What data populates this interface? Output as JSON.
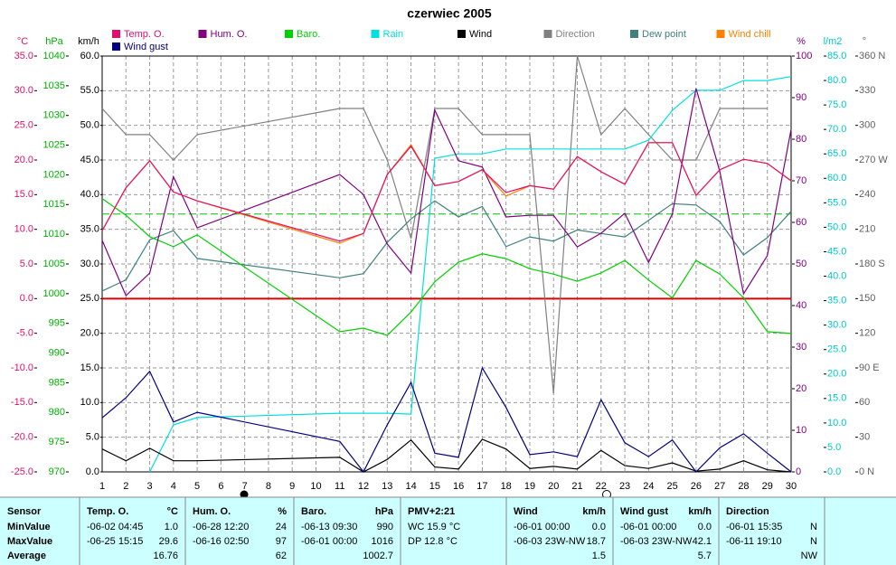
{
  "chart_data": {
    "type": "line",
    "title": "czerwiec 2005",
    "xlim": [
      1,
      30
    ],
    "xticks": [
      1,
      2,
      3,
      4,
      5,
      6,
      7,
      8,
      9,
      10,
      11,
      12,
      13,
      14,
      15,
      16,
      17,
      18,
      19,
      20,
      21,
      22,
      23,
      24,
      25,
      26,
      27,
      28,
      29,
      30
    ],
    "x": [
      1,
      2,
      3,
      4,
      5,
      11,
      12,
      13,
      14,
      15,
      16,
      17,
      18,
      19,
      20,
      21,
      22,
      23,
      24,
      25,
      26,
      27,
      28,
      29,
      30
    ],
    "grid": true,
    "axes": [
      {
        "unit": "°C",
        "side": "left",
        "color": "#e0106a",
        "lim": [
          -25,
          35
        ],
        "ticks": [
          {
            "value": -25,
            "label": "-25.0"
          },
          {
            "value": -20,
            "label": "-20.0"
          },
          {
            "value": -15,
            "label": "-15.0"
          },
          {
            "value": -10,
            "label": "-10.0"
          },
          {
            "value": -5,
            "label": "-5.0"
          },
          {
            "value": 0,
            "label": "0.0"
          },
          {
            "value": 5,
            "label": "5.0"
          },
          {
            "value": 10,
            "label": "10.0"
          },
          {
            "value": 15,
            "label": "15.0"
          },
          {
            "value": 20,
            "label": "20.0"
          },
          {
            "value": 25,
            "label": "25.0"
          },
          {
            "value": 30,
            "label": "30.0"
          },
          {
            "value": 35,
            "label": "35.0"
          }
        ]
      },
      {
        "unit": "hPa",
        "side": "left",
        "color": "#00b000",
        "lim": [
          970,
          1040
        ],
        "ticks": [
          970,
          975,
          980,
          985,
          990,
          995,
          1000,
          1005,
          1010,
          1015,
          1020,
          1025,
          1030,
          1035,
          1040
        ]
      },
      {
        "unit": "km/h",
        "side": "left",
        "color": "#000000",
        "lim": [
          0,
          60
        ],
        "ticks": [
          {
            "value": 0,
            "label": "0.0"
          },
          {
            "value": 5,
            "label": "5.0"
          },
          {
            "value": 10,
            "label": "10.0"
          },
          {
            "value": 15,
            "label": "15.0"
          },
          {
            "value": 20,
            "label": "20.0"
          },
          {
            "value": 25,
            "label": "25.0"
          },
          {
            "value": 30,
            "label": "30.0"
          },
          {
            "value": 35,
            "label": "35.0"
          },
          {
            "value": 40,
            "label": "40.0"
          },
          {
            "value": 45,
            "label": "45.0"
          },
          {
            "value": 50,
            "label": "50.0"
          },
          {
            "value": 55,
            "label": "55.0"
          },
          {
            "value": 60,
            "label": "60.0"
          }
        ]
      },
      {
        "unit": "%",
        "side": "right",
        "color": "#800080",
        "lim": [
          0,
          100
        ],
        "ticks": [
          0,
          10,
          20,
          30,
          40,
          50,
          60,
          70,
          80,
          90,
          100
        ]
      },
      {
        "unit": "l/m2",
        "side": "right",
        "color": "#00c8c8",
        "lim": [
          0,
          85
        ],
        "ticks": [
          {
            "value": 0,
            "label": "0.0"
          },
          {
            "value": 5,
            "label": "5.0"
          },
          {
            "value": 10,
            "label": "10.0"
          },
          {
            "value": 15,
            "label": "15.0"
          },
          {
            "value": 20,
            "label": "20.0"
          },
          {
            "value": 25,
            "label": "25.0"
          },
          {
            "value": 30,
            "label": "30.0"
          },
          {
            "value": 35,
            "label": "35.0"
          },
          {
            "value": 40,
            "label": "40.0"
          },
          {
            "value": 45,
            "label": "45.0"
          },
          {
            "value": 50,
            "label": "50.0"
          },
          {
            "value": 55,
            "label": "55.0"
          },
          {
            "value": 60,
            "label": "60.0"
          },
          {
            "value": 65,
            "label": "65.0"
          },
          {
            "value": 70,
            "label": "70.0"
          },
          {
            "value": 75,
            "label": "75.0"
          },
          {
            "value": 80,
            "label": "80.0"
          },
          {
            "value": 85,
            "label": "85.0"
          }
        ]
      },
      {
        "unit": "°",
        "side": "right",
        "color": "#606060",
        "lim": [
          0,
          360
        ],
        "ticks": [
          {
            "value": 0,
            "label": "0 N"
          },
          30,
          60,
          {
            "value": 90,
            "label": "90 E"
          },
          120,
          150,
          {
            "value": 180,
            "label": "180 S"
          },
          210,
          240,
          {
            "value": 270,
            "label": "270 W"
          },
          300,
          330,
          {
            "value": 360,
            "label": "360 N"
          }
        ]
      }
    ],
    "reference_lines": [
      {
        "axis": "°C",
        "value": 0,
        "color": "#e00000",
        "dashed": false
      },
      {
        "axis": "%",
        "value": 62,
        "color": "#00c000",
        "dashed": true
      }
    ],
    "series": [
      {
        "name": "Temp. O.",
        "color": "#e0106a",
        "axis": "°C",
        "values": [
          9.8,
          16,
          19.9,
          15.4,
          14.1,
          8.3,
          9.4,
          17.9,
          22,
          16.3,
          16.9,
          18.6,
          15.3,
          16.3,
          15.8,
          20.5,
          18.3,
          16.5,
          22.5,
          22.5,
          14.9,
          18.6,
          20.1,
          19.5,
          17
        ]
      },
      {
        "name": "Hum. O.",
        "color": "#800080",
        "axis": "%",
        "values": [
          55.7,
          42.4,
          47.8,
          71,
          58.7,
          71.5,
          66.7,
          54.8,
          47.8,
          87,
          74.8,
          73.3,
          61.3,
          61.7,
          61.7,
          54.1,
          57.4,
          62.2,
          50.4,
          62,
          92.2,
          72.2,
          42.8,
          52,
          82.4
        ]
      },
      {
        "name": "Baro.",
        "color": "#00d000",
        "axis": "hPa",
        "values": [
          1016,
          1013.2,
          1009.6,
          1007.9,
          1009.9,
          993.6,
          994.2,
          993,
          996.9,
          1002,
          1005.3,
          1006.7,
          1005.9,
          1004.2,
          1003.3,
          1002.1,
          1003.5,
          1005.6,
          1002.3,
          999.3,
          1005.6,
          1003.3,
          999.3,
          993.6,
          993.3
        ]
      },
      {
        "name": "Rain",
        "color": "#00e0e0",
        "axis": "l/m2",
        "values": [
          null,
          null,
          0,
          9.6,
          11.1,
          12,
          12,
          12,
          11.8,
          64.1,
          65,
          65,
          66,
          66,
          66,
          66,
          66,
          66,
          67.8,
          73.9,
          78,
          78,
          80,
          80,
          80.8
        ]
      },
      {
        "name": "Wind",
        "color": "#000000",
        "axis": "km/h",
        "values": [
          3.3,
          1.6,
          3.4,
          1.6,
          1.6,
          2.1,
          0,
          1.8,
          4.6,
          0.7,
          0.4,
          4.7,
          3.3,
          0.5,
          0.8,
          0.4,
          3.1,
          0.9,
          0.5,
          1.3,
          0.1,
          0.4,
          1.6,
          0.3,
          0
        ]
      },
      {
        "name": "Direction",
        "color": "#808080",
        "axis": "°",
        "values": [
          314.6,
          292,
          292,
          270,
          292,
          314.6,
          314.6,
          270,
          202,
          314.6,
          314.6,
          292,
          292,
          292,
          68,
          360,
          292,
          314.6,
          292,
          270,
          270,
          314.6,
          314.6,
          314.6,
          null
        ]
      },
      {
        "name": "Dew point",
        "color": "#408080",
        "axis": "°C",
        "values": [
          1.1,
          2.7,
          8.5,
          9.8,
          5.8,
          3.0,
          3.6,
          8.1,
          11.5,
          14.1,
          11.8,
          13.3,
          7.5,
          8.9,
          8.3,
          9.9,
          9.4,
          8.9,
          11.3,
          13.7,
          13.5,
          11.1,
          6.3,
          8.8,
          12.6
        ]
      },
      {
        "name": "Wind chill",
        "color": "#ff8000",
        "axis": "°C",
        "values": [
          9.8,
          16,
          19.9,
          15.4,
          14.1,
          8.0,
          9.4,
          17.9,
          22.2,
          16.3,
          16.9,
          18.6,
          14.8,
          16.3,
          15.8,
          20.5,
          18.3,
          16.5,
          22.5,
          22.5,
          14.9,
          18.6,
          20.1,
          19.5,
          17
        ]
      },
      {
        "name": "Wind gust",
        "color": "#000080",
        "axis": "km/h",
        "values": [
          7.8,
          10.7,
          14.5,
          7.2,
          8.6,
          4.4,
          0,
          6.8,
          12.9,
          2.7,
          2.1,
          15,
          9.3,
          2.5,
          2.9,
          2.2,
          10.4,
          4.2,
          2.2,
          4.6,
          0,
          3.5,
          5.5,
          2.7,
          0
        ]
      }
    ]
  },
  "table": {
    "row_labels": [
      "Sensor",
      "MinValue",
      "MaxValue",
      "Average"
    ],
    "columns": [
      {
        "title": "Temp. O.",
        "unit": "°C",
        "min": [
          "-06-02 04:45",
          "1.0"
        ],
        "max": [
          "-06-25 15:15",
          "29.6"
        ],
        "average": "16.76"
      },
      {
        "title": "Hum. O.",
        "unit": "%",
        "min": [
          "-06-28 12:20",
          "24"
        ],
        "max": [
          "-06-16 02:50",
          "97"
        ],
        "average": "62"
      },
      {
        "title": "Baro.",
        "unit": "hPa",
        "min": [
          "-06-13 09:30",
          "990"
        ],
        "max": [
          "-06-01 00:00",
          "1016"
        ],
        "average": "1002.7"
      },
      {
        "title": "PMV+2:21",
        "lines": [
          "WC 15.9 °C",
          "DP 12.8 °C"
        ]
      },
      {
        "title": "Wind",
        "unit": "km/h",
        "min": [
          "-06-01 00:00",
          "0.0"
        ],
        "max": [
          "-06-03 23W-NW",
          "18.7"
        ],
        "average": "1.5"
      },
      {
        "title": "Wind gust",
        "unit": "km/h",
        "min": [
          "-06-01 00:00",
          "0.0"
        ],
        "max": [
          "-06-03 23W-NW",
          "42.1"
        ],
        "average": "5.7"
      },
      {
        "title": "Direction",
        "min": [
          "-06-01 15:35",
          "N"
        ],
        "max": [
          "-06-11 19:10",
          "N"
        ],
        "average": "NW"
      }
    ]
  }
}
